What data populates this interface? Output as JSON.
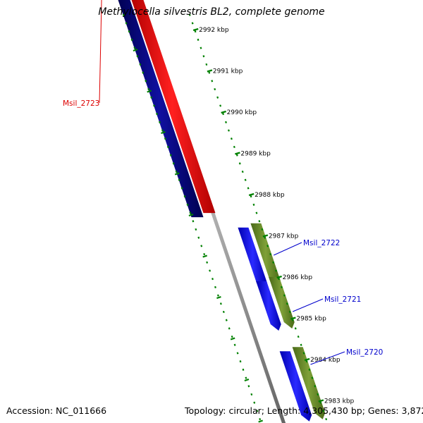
{
  "header": {
    "title": "Methylocella silvestris BL2, complete genome"
  },
  "footer": {
    "accession": "Accession: NC_011666",
    "summary": "Topology: circular; Length: 4,305,430 bp; Genes: 3,872"
  },
  "colors": {
    "forward_gene": "#0000ff",
    "reverse_gene": "#ff0000",
    "reverse_gene_dark": "#000080",
    "rna_gene": "#6b8e23",
    "backbone": "#808080",
    "ticks": "#008000",
    "forward_label": "#0000cc",
    "reverse_label": "#dd0000"
  },
  "scale": {
    "unit": "kbp",
    "ticks": [
      {
        "value": 2992,
        "label": "2992 kbp"
      },
      {
        "value": 2991,
        "label": "2991 kbp"
      },
      {
        "value": 2990,
        "label": "2990 kbp"
      },
      {
        "value": 2989,
        "label": "2989 kbp"
      },
      {
        "value": 2988,
        "label": "2988 kbp"
      },
      {
        "value": 2987,
        "label": "2987 kbp"
      },
      {
        "value": 2986,
        "label": "2986 kbp"
      },
      {
        "value": 2985,
        "label": "2985 kbp"
      },
      {
        "value": 2984,
        "label": "2984 kbp"
      },
      {
        "value": 2983,
        "label": "2983 kbp"
      }
    ]
  },
  "genes": [
    {
      "name": "Msil_2723",
      "strand": "reverse",
      "start_kbp": 2987.45,
      "end_kbp": 2993.2
    },
    {
      "name": "Msil_2722",
      "strand": "forward",
      "start_kbp": 2985.7,
      "end_kbp": 2987.2
    },
    {
      "name": "Msil_2721",
      "strand": "forward",
      "start_kbp": 2984.7,
      "end_kbp": 2985.9
    },
    {
      "name": "Msil_2720",
      "strand": "forward",
      "start_kbp": 2982.5,
      "end_kbp": 2984.2
    }
  ]
}
